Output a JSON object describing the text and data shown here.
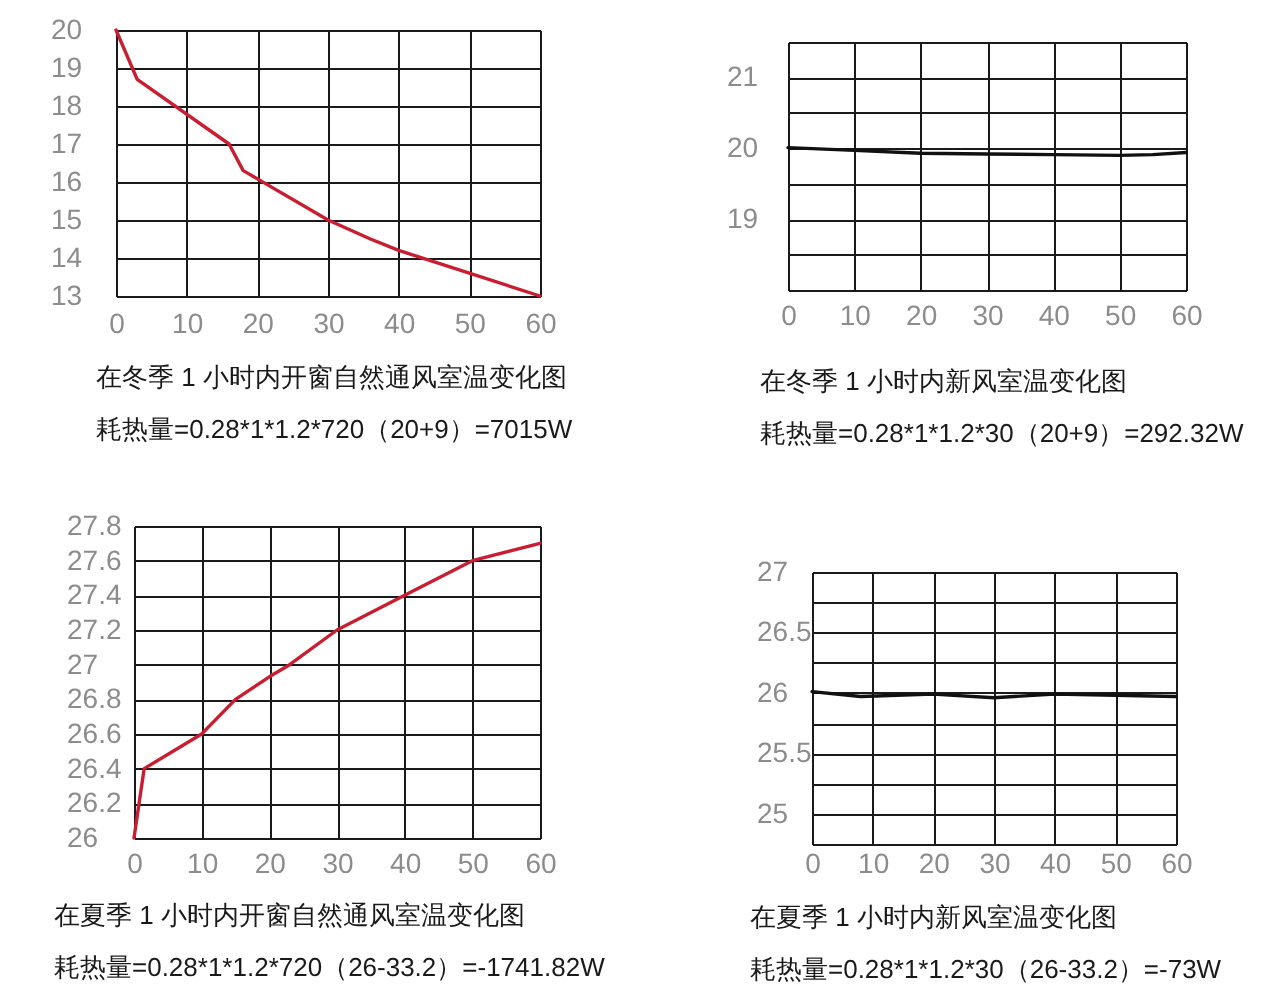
{
  "chart_data": [
    {
      "type": "line",
      "title": "在冬季 1 小时内开窗自然通风室温变化图",
      "subtitle": "耗热量=0.28*1*1.2*720（20+9）=7015W",
      "x": [
        0,
        3,
        16,
        18,
        30,
        36,
        40,
        50,
        60
      ],
      "series": [
        {
          "color": "#c81e32",
          "values": [
            20,
            18.7,
            17,
            16.3,
            15.0,
            14.5,
            14.2,
            13.6,
            13
          ]
        }
      ],
      "xlim": [
        0,
        60
      ],
      "xticks": [
        0,
        10,
        20,
        30,
        40,
        50,
        60
      ],
      "ylim": [
        13,
        20
      ],
      "yticks": [
        13,
        14,
        15,
        16,
        17,
        18,
        19,
        20
      ],
      "grid": true
    },
    {
      "type": "line",
      "title": "在冬季 1 小时内新风室温变化图",
      "subtitle": "耗热量=0.28*1*1.2*30（20+9）=292.32W",
      "x": [
        0,
        10,
        20,
        30,
        40,
        50,
        55,
        60
      ],
      "series": [
        {
          "color": "#111111",
          "values": [
            20.01,
            19.97,
            19.93,
            19.92,
            19.91,
            19.9,
            19.91,
            19.94
          ]
        }
      ],
      "xlim": [
        0,
        60
      ],
      "xticks": [
        0,
        10,
        20,
        30,
        40,
        50,
        60
      ],
      "ylim": [
        18,
        21.5
      ],
      "yticks": [
        {
          "value": 18,
          "label": null
        },
        {
          "value": 18.5,
          "label": null
        },
        19,
        {
          "value": 19.5,
          "label": null
        },
        20,
        {
          "value": 20.5,
          "label": null
        },
        21,
        {
          "value": 21.5,
          "label": null
        }
      ],
      "grid": true
    },
    {
      "type": "line",
      "title": "在夏季 1 小时内开窗自然通风室温变化图",
      "subtitle": "耗热量=0.28*1*1.2*720（26-33.2）=-1741.82W",
      "x": [
        0,
        1.5,
        10,
        15,
        20,
        23,
        30,
        40,
        50,
        60
      ],
      "series": [
        {
          "color": "#c81e32",
          "values": [
            26,
            26.4,
            26.6,
            26.8,
            26.93,
            27,
            27.2,
            27.4,
            27.6,
            27.7
          ]
        }
      ],
      "xlim": [
        0,
        60
      ],
      "xticks": [
        0,
        10,
        20,
        30,
        40,
        50,
        60
      ],
      "ylim": [
        26,
        27.8
      ],
      "yticks": [
        26,
        26.2,
        26.4,
        26.6,
        26.8,
        27,
        27.2,
        27.4,
        27.6,
        27.8
      ],
      "grid": true
    },
    {
      "type": "line",
      "title": "在夏季 1 小时内新风室温变化图",
      "subtitle": "耗热量=0.28*1*1.2*30（26-33.2）=-73W",
      "x": [
        0,
        8,
        20,
        30,
        40,
        50,
        60
      ],
      "series": [
        {
          "color": "#111111",
          "values": [
            26.01,
            25.97,
            25.99,
            25.96,
            25.99,
            25.98,
            25.97
          ]
        }
      ],
      "xlim": [
        0,
        60
      ],
      "xticks": [
        0,
        10,
        20,
        30,
        40,
        50,
        60
      ],
      "ylim": [
        24.75,
        27
      ],
      "yticks": [
        {
          "value": 24.75,
          "label": null
        },
        25,
        {
          "value": 25.25,
          "label": null
        },
        25.5,
        {
          "value": 25.75,
          "label": null
        },
        26,
        {
          "value": 26.25,
          "label": null
        },
        26.5,
        {
          "value": 26.75,
          "label": null
        },
        27
      ],
      "grid": true
    }
  ]
}
